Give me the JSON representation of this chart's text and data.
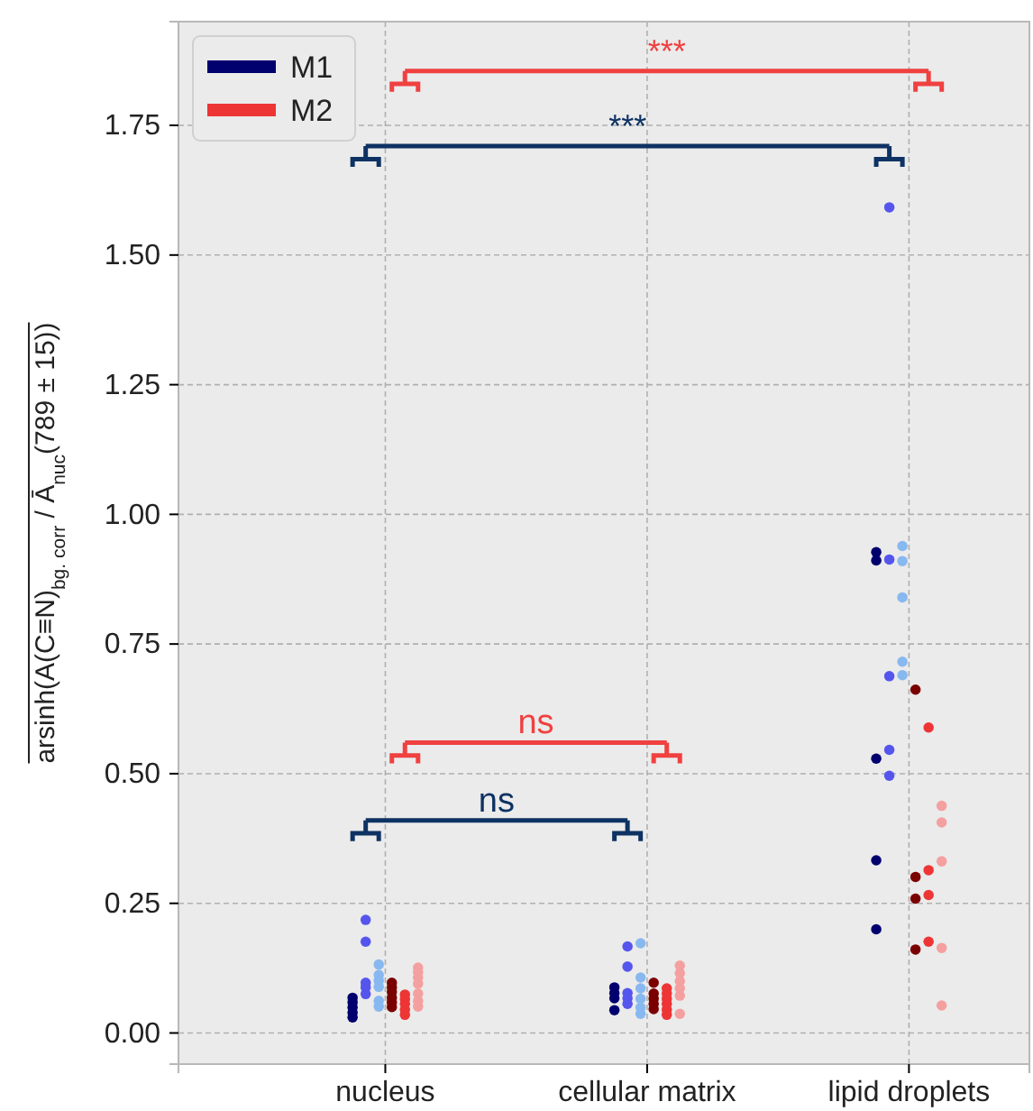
{
  "chart_data": {
    "type": "scatter",
    "ylabel": "arsinh(A(C≡N)$_{bg. corr}$ / Ā$_{nuc}$(789 ± 15))",
    "categories": [
      "nucleus",
      "cellular matrix",
      "lipid droplets"
    ],
    "ylim": [
      -0.06,
      1.95
    ],
    "yticks": [
      {
        "value": 0,
        "label": "0.00"
      },
      {
        "value": 0.25,
        "label": "0.25"
      },
      {
        "value": 0.5,
        "label": "0.50"
      },
      {
        "value": 0.75,
        "label": "0.75"
      },
      {
        "value": 1,
        "label": "1.00"
      },
      {
        "value": 1.25,
        "label": "1.25"
      },
      {
        "value": 1.5,
        "label": "1.50"
      },
      {
        "value": 1.75,
        "label": "1.75"
      }
    ],
    "grid": true,
    "legend": "top left",
    "marker": "circle",
    "annotations": [
      "ns",
      "ns",
      "***",
      "***"
    ],
    "series": [
      {
        "name": "M1",
        "color": "#00006e",
        "x": [
          "nucleus",
          "nucleus",
          "nucleus",
          "nucleus",
          "nucleus",
          "cellular matrix",
          "cellular matrix",
          "cellular matrix",
          "cellular matrix",
          "lipid droplets",
          "lipid droplets",
          "lipid droplets",
          "lipid droplets",
          "lipid droplets"
        ],
        "values": [
          0.068,
          0.059,
          0.049,
          0.039,
          0.03,
          0.088,
          0.077,
          0.067,
          0.044,
          0.927,
          0.911,
          0.529,
          0.333,
          0.2
        ]
      },
      {
        "color": "#5555ee",
        "x": [
          "nucleus",
          "nucleus",
          "nucleus",
          "nucleus",
          "nucleus",
          "cellular matrix",
          "cellular matrix",
          "cellular matrix",
          "cellular matrix",
          "cellular matrix",
          "lipid droplets",
          "lipid droplets",
          "lipid droplets",
          "lipid droplets",
          "lipid droplets"
        ],
        "values": [
          0.218,
          0.176,
          0.097,
          0.088,
          0.075,
          0.167,
          0.128,
          0.077,
          0.067,
          0.056,
          1.592,
          0.913,
          0.688,
          0.546,
          0.496
        ]
      },
      {
        "color": "#88b8f0",
        "x": [
          "nucleus",
          "nucleus",
          "nucleus",
          "nucleus",
          "nucleus",
          "nucleus",
          "cellular matrix",
          "cellular matrix",
          "cellular matrix",
          "cellular matrix",
          "cellular matrix",
          "cellular matrix",
          "lipid droplets",
          "lipid droplets",
          "lipid droplets",
          "lipid droplets",
          "lipid droplets"
        ],
        "values": [
          0.132,
          0.112,
          0.101,
          0.089,
          0.062,
          0.051,
          0.173,
          0.107,
          0.086,
          0.066,
          0.049,
          0.037,
          0.939,
          0.91,
          0.84,
          0.716,
          0.69
        ]
      },
      {
        "color": "#7a0000",
        "x": [
          "nucleus",
          "nucleus",
          "nucleus",
          "nucleus",
          "nucleus",
          "nucleus",
          "cellular matrix",
          "cellular matrix",
          "cellular matrix",
          "cellular matrix",
          "cellular matrix",
          "lipid droplets",
          "lipid droplets",
          "lipid droplets",
          "lipid droplets"
        ],
        "values": [
          0.097,
          0.088,
          0.079,
          0.068,
          0.059,
          0.05,
          0.097,
          0.076,
          0.066,
          0.056,
          0.046,
          0.662,
          0.301,
          0.259,
          0.161
        ]
      },
      {
        "name": "M2",
        "color": "#ee3535",
        "x": [
          "nucleus",
          "nucleus",
          "nucleus",
          "nucleus",
          "nucleus",
          "cellular matrix",
          "cellular matrix",
          "cellular matrix",
          "cellular matrix",
          "cellular matrix",
          "cellular matrix",
          "lipid droplets",
          "lipid droplets",
          "lipid droplets",
          "lipid droplets"
        ],
        "values": [
          0.074,
          0.065,
          0.056,
          0.045,
          0.035,
          0.086,
          0.076,
          0.066,
          0.056,
          0.045,
          0.035,
          0.589,
          0.314,
          0.266,
          0.176
        ]
      },
      {
        "color": "#f4a0a0",
        "x": [
          "nucleus",
          "nucleus",
          "nucleus",
          "nucleus",
          "nucleus",
          "nucleus",
          "nucleus",
          "cellular matrix",
          "cellular matrix",
          "cellular matrix",
          "cellular matrix",
          "cellular matrix",
          "cellular matrix",
          "lipid droplets",
          "lipid droplets",
          "lipid droplets",
          "lipid droplets",
          "lipid droplets"
        ],
        "values": [
          0.126,
          0.117,
          0.107,
          0.095,
          0.076,
          0.062,
          0.051,
          0.13,
          0.115,
          0.1,
          0.086,
          0.072,
          0.037,
          0.438,
          0.406,
          0.331,
          0.164,
          0.053
        ]
      }
    ]
  }
}
